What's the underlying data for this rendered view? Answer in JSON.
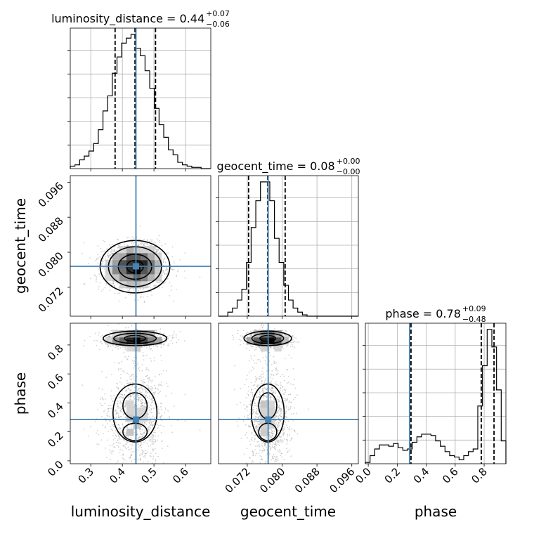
{
  "chart_data": {
    "type": "corner",
    "parameters": [
      "luminosity_distance",
      "geocent_time",
      "phase"
    ],
    "truths": [
      0.443,
      0.0768,
      0.285
    ],
    "titles": [
      {
        "param": "luminosity_distance",
        "median": "0.44",
        "plus": "+0.07",
        "minus": "−0.06"
      },
      {
        "param": "geocent_time",
        "median": "0.08",
        "plus": "+0.00",
        "minus": "−0.00"
      },
      {
        "param": "phase",
        "median": "0.78",
        "plus": "+0.09",
        "minus": "−0.48"
      }
    ],
    "ranges": [
      [
        0.235,
        0.68
      ],
      [
        0.0654,
        0.0975
      ],
      [
        -0.02,
        0.95
      ]
    ],
    "ticks": [
      {
        "values": [
          0.3,
          0.4,
          0.5,
          0.6
        ],
        "labels": [
          "0.3",
          "0.4",
          "0.5",
          "0.6"
        ]
      },
      {
        "values": [
          0.072,
          0.08,
          0.088,
          0.096
        ],
        "labels": [
          "0.072",
          "0.080",
          "0.088",
          "0.096"
        ]
      },
      {
        "values": [
          0.0,
          0.2,
          0.4,
          0.6,
          0.8
        ],
        "labels": [
          "0.0",
          "0.2",
          "0.4",
          "0.6",
          "0.8"
        ]
      }
    ],
    "quantiles": [
      [
        0.377,
        0.44,
        0.505
      ],
      [
        0.0723,
        0.0767,
        0.0807
      ],
      [
        0.295,
        0.78,
        0.868
      ]
    ],
    "histograms": [
      {
        "bin_edges": [
          0.235,
          0.2498,
          0.2646,
          0.2794,
          0.2942,
          0.309,
          0.3238,
          0.3386,
          0.3534,
          0.3682,
          0.383,
          0.3978,
          0.4126,
          0.4274,
          0.4422,
          0.457,
          0.4718,
          0.4866,
          0.5014,
          0.5162,
          0.531,
          0.5458,
          0.5606,
          0.5754,
          0.5902,
          0.605,
          0.6198,
          0.6346,
          0.6494,
          0.6642,
          0.679
        ],
        "counts": [
          2,
          3,
          7,
          10,
          14,
          20,
          31,
          46,
          58,
          76,
          89,
          100,
          104,
          107,
          96,
          90,
          78,
          64,
          48,
          35,
          25,
          15,
          11,
          5,
          3,
          2,
          1,
          1,
          0,
          0
        ]
      },
      {
        "bin_edges": [
          0.0654,
          0.06647,
          0.06754,
          0.06861,
          0.06968,
          0.07075,
          0.07182,
          0.07289,
          0.07396,
          0.07503,
          0.0761,
          0.07717,
          0.07824,
          0.07931,
          0.08038,
          0.08145,
          0.08252,
          0.08359,
          0.08466,
          0.08573,
          0.0868,
          0.08787,
          0.08894,
          0.09001,
          0.09108,
          0.09215,
          0.09322,
          0.09429,
          0.09536,
          0.09643,
          0.0975
        ],
        "counts": [
          0,
          0,
          3,
          6,
          12,
          20,
          40,
          66,
          86,
          100,
          100,
          86,
          58,
          40,
          23,
          12,
          6,
          3,
          1,
          0,
          0,
          0,
          0,
          0,
          0,
          0,
          0,
          0,
          0,
          0
        ]
      },
      {
        "bin_edges": [
          -0.02,
          0.0123,
          0.0447,
          0.077,
          0.1093,
          0.1417,
          0.174,
          0.2063,
          0.2387,
          0.271,
          0.3033,
          0.3357,
          0.368,
          0.4003,
          0.4327,
          0.465,
          0.4973,
          0.5297,
          0.562,
          0.5943,
          0.6267,
          0.659,
          0.6913,
          0.7237,
          0.756,
          0.7883,
          0.8207,
          0.853,
          0.8853,
          0.9177,
          0.95
        ],
        "counts": [
          1,
          6,
          11,
          14,
          14,
          13,
          15,
          12,
          10,
          11,
          16,
          20,
          22,
          22,
          21,
          17,
          13,
          9,
          6,
          5,
          3,
          6,
          9,
          11,
          43,
          73,
          100,
          87,
          55,
          17
        ]
      }
    ]
  }
}
